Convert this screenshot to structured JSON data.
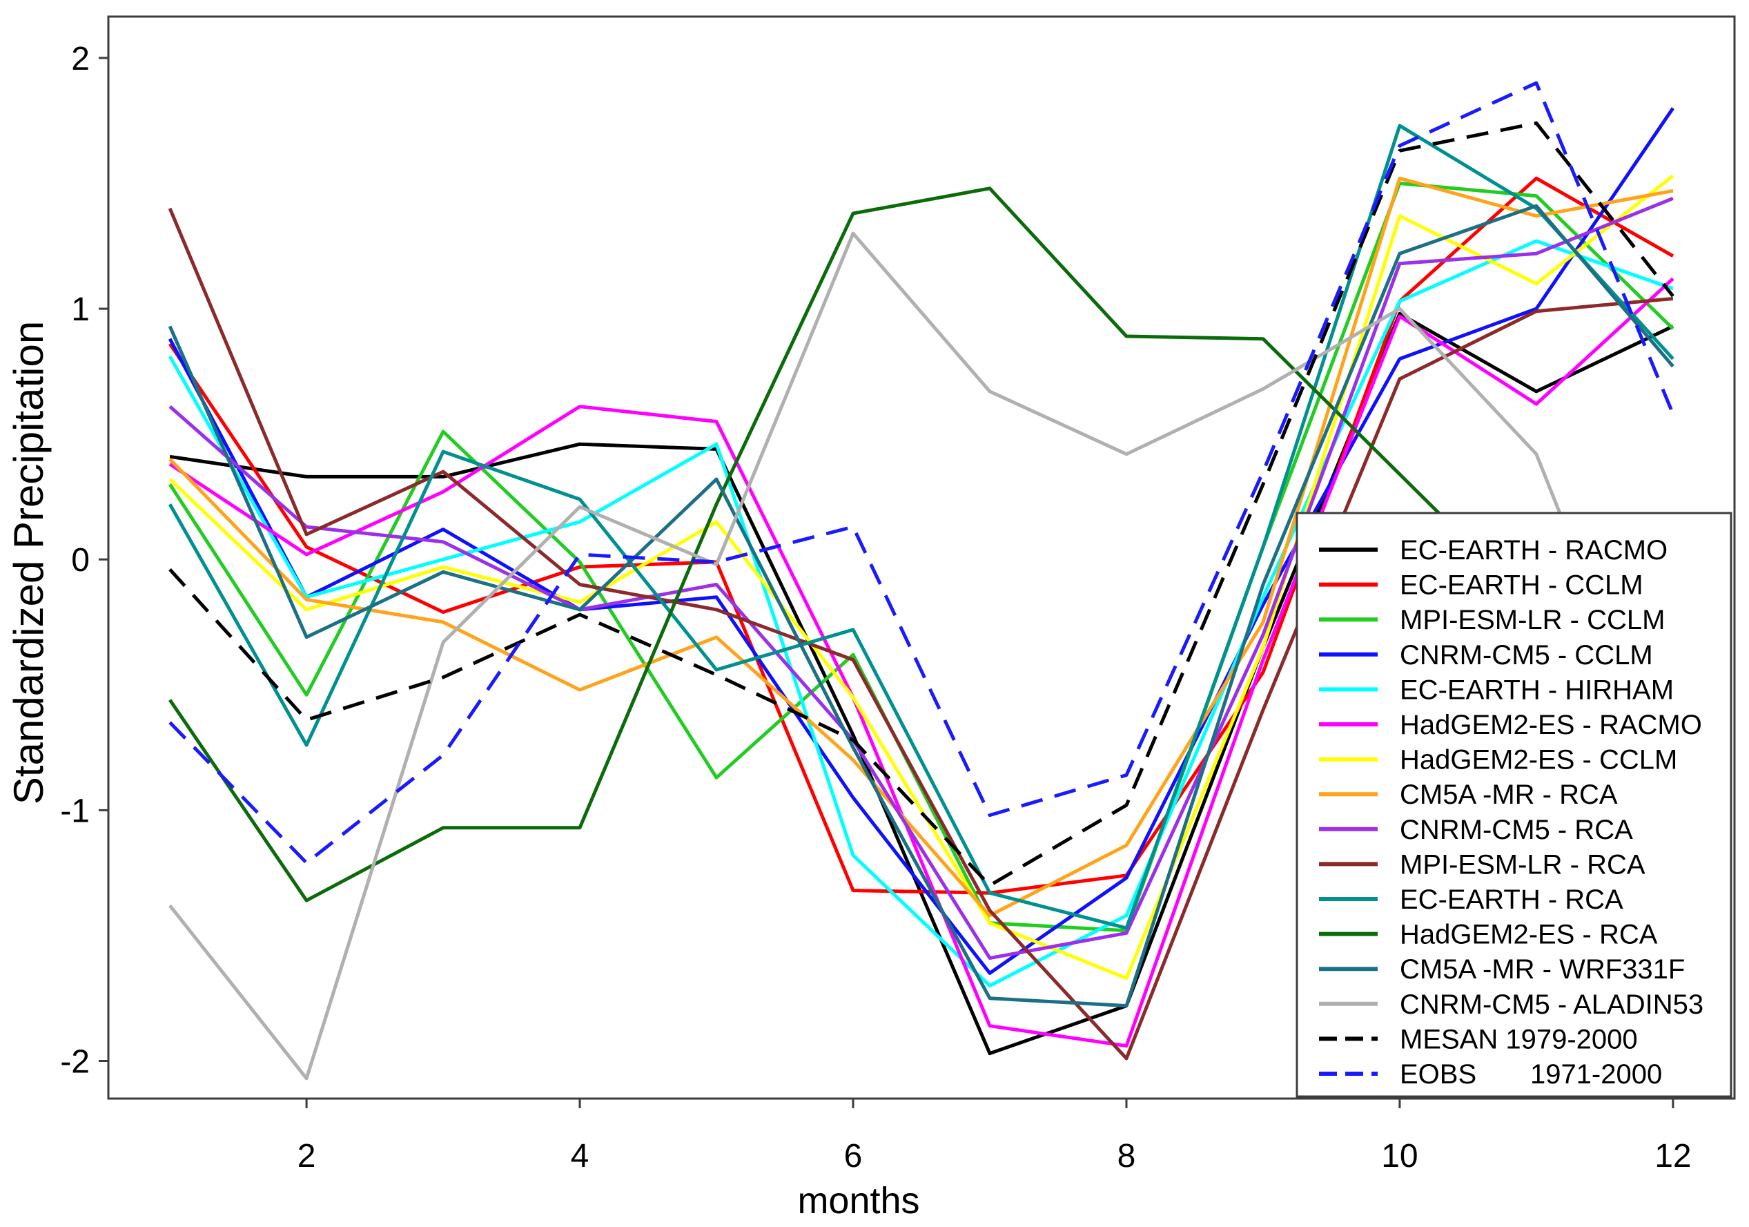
{
  "chart_data": {
    "type": "line",
    "xlabel": "months",
    "ylabel": "Standardized Precipitation",
    "x": [
      1,
      2,
      3,
      4,
      5,
      6,
      7,
      8,
      9,
      10,
      11,
      12
    ],
    "xticks": [
      2,
      4,
      6,
      8,
      10,
      12
    ],
    "yticks": [
      -2,
      -1,
      0,
      1,
      2
    ],
    "xlim": [
      0.55,
      12.45
    ],
    "ylim": [
      -2.15,
      2.165
    ],
    "grid": false,
    "legend_position": "bottom-right",
    "series": [
      {
        "name": "EC-EARTH - RACMO",
        "color": "#000000",
        "dashed": false,
        "values": [
          0.41,
          0.33,
          0.33,
          0.46,
          0.44,
          -0.7,
          -1.97,
          -1.78,
          -0.35,
          0.98,
          0.67,
          0.93
        ]
      },
      {
        "name": "EC-EARTH - CCLM",
        "color": "#ff0000",
        "dashed": false,
        "values": [
          0.86,
          0.05,
          -0.21,
          -0.03,
          -0.01,
          -1.32,
          -1.33,
          -1.26,
          -0.45,
          1.03,
          1.52,
          1.21
        ]
      },
      {
        "name": "MPI-ESM-LR - CCLM",
        "color": "#22cc22",
        "dashed": false,
        "values": [
          0.3,
          -0.54,
          0.51,
          -0.01,
          -0.87,
          -0.38,
          -1.45,
          -1.48,
          0.05,
          1.5,
          1.45,
          0.92
        ]
      },
      {
        "name": "CNRM-CM5 - CCLM",
        "color": "#1010ff",
        "dashed": false,
        "values": [
          0.88,
          -0.15,
          0.12,
          -0.2,
          -0.15,
          -0.95,
          -1.65,
          -1.27,
          -0.18,
          0.8,
          1.0,
          1.8
        ]
      },
      {
        "name": "EC-EARTH - HIRHAM",
        "color": "#00ffff",
        "dashed": false,
        "values": [
          0.81,
          -0.15,
          0.0,
          0.15,
          0.46,
          -1.18,
          -1.7,
          -1.42,
          -0.15,
          1.03,
          1.27,
          1.08
        ]
      },
      {
        "name": "HadGEM2-ES - RACMO",
        "color": "#ff00ff",
        "dashed": false,
        "values": [
          0.38,
          0.02,
          0.27,
          0.61,
          0.55,
          -0.55,
          -1.86,
          -1.94,
          -0.4,
          0.97,
          0.62,
          1.12
        ]
      },
      {
        "name": "HadGEM2-ES - CCLM",
        "color": "#ffff00",
        "dashed": false,
        "values": [
          0.32,
          -0.2,
          -0.03,
          -0.17,
          0.15,
          -0.55,
          -1.45,
          -1.67,
          -0.35,
          1.37,
          1.1,
          1.53
        ]
      },
      {
        "name": "CM5A -MR - RCA",
        "color": "#ffa31a",
        "dashed": false,
        "values": [
          0.4,
          -0.16,
          -0.25,
          -0.52,
          -0.31,
          -0.8,
          -1.42,
          -1.14,
          -0.25,
          1.52,
          1.37,
          1.47
        ]
      },
      {
        "name": "CNRM-CM5 - RCA",
        "color": "#9b30e8",
        "dashed": false,
        "values": [
          0.61,
          0.13,
          0.07,
          -0.2,
          -0.1,
          -0.72,
          -1.59,
          -1.49,
          -0.3,
          1.18,
          1.22,
          1.44
        ]
      },
      {
        "name": "MPI-ESM-LR - RCA",
        "color": "#8b2a2a",
        "dashed": false,
        "values": [
          1.4,
          0.1,
          0.35,
          -0.1,
          -0.2,
          -0.4,
          -1.4,
          -1.99,
          -0.6,
          0.72,
          0.99,
          1.04
        ]
      },
      {
        "name": "EC-EARTH - RCA",
        "color": "#009090",
        "dashed": false,
        "values": [
          0.22,
          -0.74,
          0.43,
          0.24,
          -0.44,
          -0.28,
          -1.33,
          -1.47,
          0.05,
          1.73,
          1.4,
          0.8
        ]
      },
      {
        "name": "HadGEM2-ES - RCA",
        "color": "#0b6b0b",
        "dashed": false,
        "values": [
          -0.56,
          -1.36,
          -1.07,
          -1.07,
          0.22,
          1.38,
          1.48,
          0.89,
          0.88,
          0.34,
          -0.2,
          -0.1
        ]
      },
      {
        "name": "CM5A -MR - WRF331F",
        "color": "#1c7086",
        "dashed": false,
        "values": [
          0.93,
          -0.31,
          -0.05,
          -0.2,
          0.32,
          -0.75,
          -1.75,
          -1.78,
          -0.1,
          1.22,
          1.41,
          0.77
        ]
      },
      {
        "name": "CNRM-CM5 - ALADIN53",
        "color": "#b0b0b0",
        "dashed": false,
        "values": [
          -1.38,
          -2.07,
          -0.33,
          0.21,
          -0.02,
          1.3,
          0.67,
          0.42,
          0.68,
          1.0,
          0.42,
          -0.95
        ]
      },
      {
        "name": "MESAN 1979-2000",
        "color": "#000000",
        "dashed": true,
        "values": [
          -0.04,
          -0.64,
          -0.47,
          -0.22,
          -0.46,
          -0.72,
          -1.3,
          -0.98,
          0.3,
          1.63,
          1.74,
          1.05
        ]
      },
      {
        "name": "EOBS       1971-2000",
        "color": "#1a1aff",
        "dashed": true,
        "values": [
          -0.65,
          -1.21,
          -0.78,
          0.02,
          -0.01,
          0.13,
          -1.02,
          -0.86,
          0.35,
          1.65,
          1.9,
          0.58
        ]
      }
    ]
  }
}
